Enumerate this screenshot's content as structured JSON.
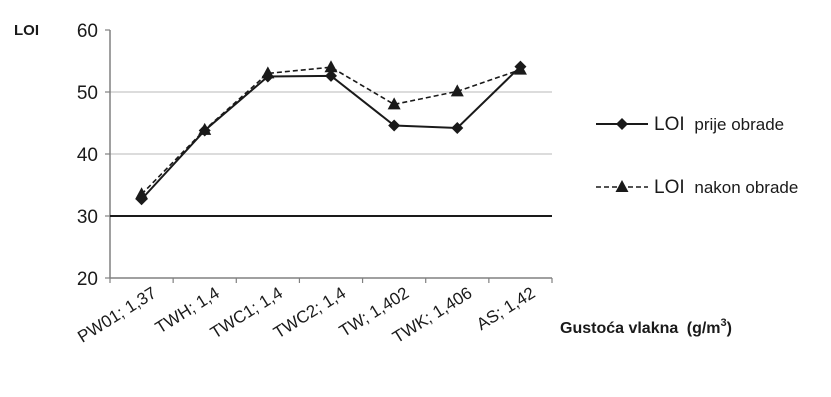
{
  "chart_data": {
    "type": "line",
    "ylabel": "LOI",
    "xlabel": "Gustoća vlakna",
    "xlabel_unit": "(g/m",
    "xlabel_unit_sup": "3",
    "xlabel_unit_close": ")",
    "ylim": [
      20,
      60
    ],
    "yticks": [
      "20",
      "30",
      "40",
      "50",
      "60"
    ],
    "ytick_values": [
      20,
      30,
      40,
      50,
      60
    ],
    "reference_line": 30,
    "categories": [
      "PW01; 1,37",
      "TWH; 1,4",
      "TWC1; 1,4",
      "TWC2; 1,4",
      "TW; 1,402",
      "TWK; 1,406",
      "AS; 1,42"
    ],
    "series": [
      {
        "legend_prefix": "LOI",
        "legend_suffix": "prije obrade",
        "style": "solid",
        "marker": "diamond",
        "values": [
          32.7,
          43.8,
          52.5,
          52.6,
          44.6,
          44.2,
          54.1
        ]
      },
      {
        "legend_prefix": "LOI",
        "legend_suffix": "nakon obrade",
        "style": "dashed",
        "marker": "triangle",
        "values": [
          33.5,
          43.9,
          53.0,
          54.0,
          48.0,
          50.1,
          53.6
        ]
      }
    ],
    "colors": {
      "line": "#1a1a1a",
      "grid": "#b8b8b8",
      "axis": "#808080"
    }
  }
}
